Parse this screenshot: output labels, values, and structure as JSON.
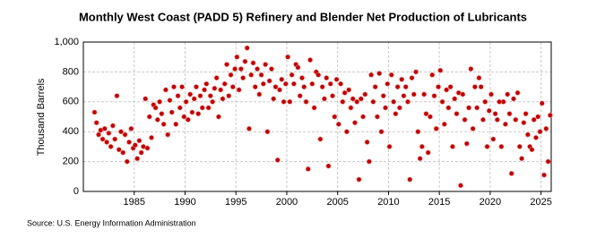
{
  "chart_data": {
    "type": "scatter",
    "title": "Monthly West Coast (PADD 5) Refinery and Blender Net Production of Lubricants",
    "y_label": "Thousand Barrels",
    "source": "Source: U.S. Energy Information Administration",
    "color": "#c00000",
    "grid": true,
    "xlim": [
      1980,
      2026
    ],
    "xticks": [
      1985,
      1990,
      1995,
      2000,
      2005,
      2010,
      2015,
      2020,
      2025
    ],
    "ylim": [
      0,
      1000
    ],
    "yticks": [
      0,
      200,
      400,
      600,
      800,
      {
        "value": 1000,
        "label": "1,000"
      }
    ],
    "x": [
      1981.1,
      1981.3,
      1981.5,
      1981.7,
      1981.9,
      1982.1,
      1982.3,
      1982.5,
      1982.7,
      1982.9,
      1983.1,
      1983.3,
      1983.5,
      1983.7,
      1983.9,
      1984.1,
      1984.3,
      1984.5,
      1984.7,
      1984.9,
      1985.1,
      1985.3,
      1985.5,
      1985.7,
      1985.9,
      1986.1,
      1986.3,
      1986.5,
      1986.7,
      1986.9,
      1987.1,
      1987.3,
      1987.5,
      1987.7,
      1987.9,
      1988.1,
      1988.3,
      1988.5,
      1988.7,
      1988.9,
      1989.1,
      1989.3,
      1989.5,
      1989.7,
      1989.9,
      1990.1,
      1990.3,
      1990.5,
      1990.7,
      1990.9,
      1991.1,
      1991.3,
      1991.5,
      1991.7,
      1991.9,
      1992.1,
      1992.3,
      1992.5,
      1992.7,
      1992.9,
      1993.1,
      1993.3,
      1993.5,
      1993.7,
      1993.9,
      1994.1,
      1994.3,
      1994.5,
      1994.7,
      1994.9,
      1995.1,
      1995.3,
      1995.5,
      1995.7,
      1995.9,
      1996.1,
      1996.3,
      1996.5,
      1996.7,
      1996.9,
      1997.1,
      1997.3,
      1997.5,
      1997.7,
      1997.9,
      1998.1,
      1998.3,
      1998.5,
      1998.7,
      1998.9,
      1999.1,
      1999.3,
      1999.5,
      1999.7,
      1999.9,
      2000.1,
      2000.3,
      2000.5,
      2000.7,
      2000.9,
      2001.1,
      2001.3,
      2001.5,
      2001.7,
      2001.9,
      2002.1,
      2002.3,
      2002.5,
      2002.7,
      2002.9,
      2003.1,
      2003.3,
      2003.5,
      2003.7,
      2003.9,
      2004.1,
      2004.3,
      2004.5,
      2004.7,
      2004.9,
      2005.1,
      2005.3,
      2005.5,
      2005.7,
      2005.9,
      2006.1,
      2006.3,
      2006.5,
      2006.7,
      2006.9,
      2007.1,
      2007.3,
      2007.5,
      2007.7,
      2007.9,
      2008.1,
      2008.3,
      2008.5,
      2008.7,
      2008.9,
      2009.1,
      2009.3,
      2009.5,
      2009.7,
      2009.9,
      2010.1,
      2010.3,
      2010.5,
      2010.7,
      2010.9,
      2011.1,
      2011.3,
      2011.5,
      2011.7,
      2011.9,
      2012.1,
      2012.3,
      2012.5,
      2012.7,
      2012.9,
      2013.1,
      2013.3,
      2013.5,
      2013.7,
      2013.9,
      2014.1,
      2014.3,
      2014.5,
      2014.7,
      2014.9,
      2015.1,
      2015.3,
      2015.5,
      2015.7,
      2015.9,
      2016.1,
      2016.3,
      2016.5,
      2016.7,
      2016.9,
      2017.1,
      2017.3,
      2017.5,
      2017.7,
      2017.9,
      2018.1,
      2018.3,
      2018.5,
      2018.7,
      2018.9,
      2019.1,
      2019.3,
      2019.5,
      2019.7,
      2019.9,
      2020.1,
      2020.3,
      2020.5,
      2020.7,
      2020.9,
      2021.1,
      2021.3,
      2021.5,
      2021.7,
      2021.9,
      2022.1,
      2022.3,
      2022.5,
      2022.7,
      2022.9,
      2023.1,
      2023.3,
      2023.5,
      2023.7,
      2023.9,
      2024.1,
      2024.3,
      2024.5,
      2024.7,
      2024.9,
      2025.1,
      2025.3,
      2025.5,
      2025.7,
      2025.9
    ],
    "values": [
      530,
      460,
      380,
      410,
      350,
      420,
      330,
      390,
      300,
      440,
      350,
      640,
      280,
      400,
      260,
      380,
      200,
      330,
      420,
      290,
      310,
      220,
      340,
      260,
      300,
      620,
      290,
      500,
      360,
      580,
      560,
      480,
      600,
      520,
      450,
      680,
      380,
      610,
      530,
      700,
      450,
      640,
      560,
      700,
      500,
      600,
      480,
      650,
      530,
      620,
      700,
      520,
      640,
      560,
      680,
      720,
      560,
      640,
      600,
      690,
      760,
      500,
      680,
      620,
      720,
      850,
      640,
      780,
      700,
      820,
      900,
      680,
      820,
      760,
      870,
      960,
      420,
      780,
      860,
      700,
      820,
      650,
      780,
      720,
      850,
      400,
      740,
      820,
      620,
      700,
      210,
      680,
      750,
      600,
      720,
      900,
      600,
      780,
      720,
      850,
      830,
      640,
      760,
      700,
      600,
      150,
      880,
      720,
      560,
      800,
      780,
      350,
      700,
      620,
      760,
      170,
      720,
      640,
      500,
      750,
      450,
      720,
      600,
      660,
      400,
      680,
      560,
      620,
      460,
      600,
      80,
      620,
      500,
      650,
      330,
      200,
      780,
      600,
      700,
      500,
      790,
      400,
      640,
      560,
      720,
      300,
      780,
      600,
      520,
      700,
      560,
      750,
      640,
      700,
      600,
      80,
      760,
      650,
      800,
      400,
      220,
      300,
      650,
      520,
      260,
      500,
      780,
      640,
      420,
      700,
      810,
      600,
      450,
      680,
      560,
      700,
      300,
      620,
      520,
      660,
      40,
      650,
      480,
      320,
      560,
      820,
      420,
      700,
      560,
      760,
      700,
      480,
      600,
      300,
      540,
      650,
      350,
      520,
      480,
      600,
      300,
      600,
      450,
      650,
      520,
      120,
      620,
      480,
      660,
      300,
      220,
      460,
      520,
      380,
      300,
      280,
      480,
      360,
      500,
      400,
      590,
      110,
      420,
      200,
      510
    ]
  }
}
